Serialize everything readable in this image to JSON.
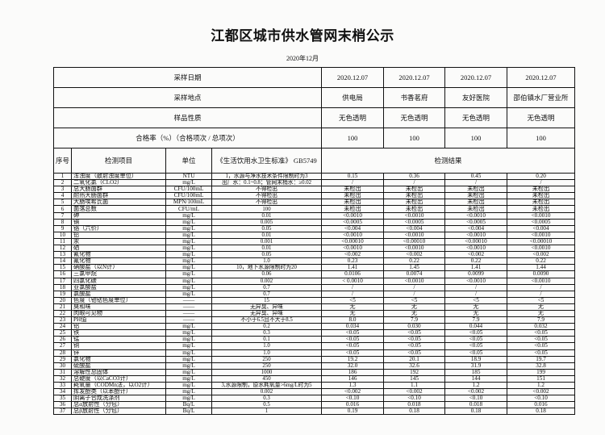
{
  "title": "江都区城市供水管网末梢公示",
  "subtitle": "2020年12月",
  "header_rows": [
    {
      "label": "采样日期",
      "values": [
        "2020.12.07",
        "2020.12.07",
        "2020.12.07",
        "2020.12.07"
      ]
    },
    {
      "label": "采样地点",
      "values": [
        "供电局",
        "书香茗府",
        "友好医院",
        "邵伯镇水厂营业所"
      ]
    },
    {
      "label": "样品性质",
      "values": [
        "无色透明",
        "无色透明",
        "无色透明",
        "无色透明"
      ]
    },
    {
      "label": "合格率（%）（合格项次 / 总项次）",
      "values": [
        "100",
        "100",
        "100",
        "100"
      ]
    }
  ],
  "columns": {
    "seq": "序号",
    "item": "检测项目",
    "unit": "单位",
    "standard": "《生活饮用水卫生标准》 GB5749",
    "results": "检测结果"
  },
  "rows": [
    {
      "seq": "1",
      "item": "浑浊度（散射浊度单位）",
      "unit": "NTU",
      "standard": "1，水源与净水技术条件限制时为3",
      "results": [
        "0.15",
        "0.36",
        "0.45",
        "0.20"
      ]
    },
    {
      "seq": "2",
      "item": "二氧化氯（CLO2）",
      "unit": "mg/L",
      "standard": "出厂水：0.1~0.8；管网末梢水：≥0.02",
      "results": [
        "/",
        "/",
        "/",
        "/"
      ]
    },
    {
      "seq": "3",
      "item": "总大肠菌群",
      "unit": "CFU/100mL",
      "standard": "不得检出",
      "results": [
        "未检出",
        "未检出",
        "未检出",
        "未检出"
      ]
    },
    {
      "seq": "4",
      "item": "耐热大肠菌群",
      "unit": "CFU/100mL",
      "standard": "不得检出",
      "results": [
        "未检出",
        "未检出",
        "未检出",
        "未检出"
      ]
    },
    {
      "seq": "5",
      "item": "大肠埃希氏菌",
      "unit": "MPN/100mL",
      "standard": "不得检出",
      "results": [
        "未检出",
        "未检出",
        "未检出",
        "未检出"
      ]
    },
    {
      "seq": "6",
      "item": "菌落总数",
      "unit": "CFU/mL",
      "standard": "100",
      "results": [
        "未检出",
        "未检出",
        "未检出",
        "未检出"
      ]
    },
    {
      "seq": "7",
      "item": "砷",
      "unit": "mg/L",
      "standard": "0.01",
      "results": [
        "<0.0010",
        "<0.0010",
        "<0.0010",
        "<0.0010"
      ]
    },
    {
      "seq": "8",
      "item": "镉",
      "unit": "mg/L",
      "standard": "0.005",
      "results": [
        "<0.0005",
        "<0.0005",
        "<0.0005",
        "<0.0005"
      ]
    },
    {
      "seq": "9",
      "item": "铬（六价）",
      "unit": "mg/L",
      "standard": "0.05",
      "results": [
        "<0.004",
        "<0.004",
        "<0.004",
        "<0.004"
      ]
    },
    {
      "seq": "10",
      "item": "铅",
      "unit": "mg/L",
      "standard": "0.01",
      "results": [
        "<0.0010",
        "<0.0010",
        "<0.0010",
        "<0.0010"
      ]
    },
    {
      "seq": "11",
      "item": "汞",
      "unit": "mg/L",
      "standard": "0.001",
      "results": [
        "<0.00010",
        "<0.00010",
        "<0.00010",
        "<0.00010"
      ]
    },
    {
      "seq": "12",
      "item": "硒",
      "unit": "mg/L",
      "standard": "0.01",
      "results": [
        "<0.0010",
        "<0.0010",
        "<0.0010",
        "<0.0010"
      ]
    },
    {
      "seq": "13",
      "item": "氰化物",
      "unit": "mg/L",
      "standard": "0.05",
      "results": [
        "<0.002",
        "<0.002",
        "<0.002",
        "<0.002"
      ]
    },
    {
      "seq": "14",
      "item": "氟化物",
      "unit": "mg/L",
      "standard": "1.0",
      "results": [
        "0.23",
        "0.22",
        "0.22",
        "0.22"
      ]
    },
    {
      "seq": "15",
      "item": "硝酸盐（以N计）",
      "unit": "mg/L",
      "standard": "10，地下水源限制时为20",
      "results": [
        "1.41",
        "1.45",
        "1.41",
        "1.44"
      ]
    },
    {
      "seq": "16",
      "item": "三氯甲烷",
      "unit": "mg/L",
      "standard": "0.06",
      "results": [
        "0.0106",
        "0.0074",
        "0.0099",
        "0.0090"
      ]
    },
    {
      "seq": "17",
      "item": "四氯化碳",
      "unit": "mg/L",
      "standard": "0.002",
      "results": [
        "< 0.0010",
        "<0.0010",
        "<0.0010",
        "<0.0010"
      ]
    },
    {
      "seq": "18",
      "item": "亚氯酸盐",
      "unit": "mg/L",
      "standard": "0.7",
      "results": [
        "/",
        "/",
        "/",
        "/"
      ]
    },
    {
      "seq": "19",
      "item": "氯酸盐",
      "unit": "mg/L",
      "standard": "0.7",
      "results": [
        "/",
        "/",
        "/",
        "/"
      ]
    },
    {
      "seq": "20",
      "item": "色度（铂钴色度单位）",
      "unit": "——",
      "standard": "15",
      "results": [
        "<5",
        "<5",
        "<5",
        "<5"
      ]
    },
    {
      "seq": "21",
      "item": "臭和味",
      "unit": "——",
      "standard": "无异臭、异味",
      "results": [
        "无",
        "无",
        "无",
        "无"
      ]
    },
    {
      "seq": "22",
      "item": "肉眼可见物",
      "unit": "——",
      "standard": "无异臭、异味",
      "results": [
        "无",
        "无",
        "无",
        "无"
      ]
    },
    {
      "seq": "23",
      "item": "PH值",
      "unit": "——",
      "standard": "不小于6.5且不大于8.5",
      "results": [
        "8.0",
        "7.9",
        "7.9",
        "7.9"
      ]
    },
    {
      "seq": "24",
      "item": "铝",
      "unit": "mg/L",
      "standard": "0.2",
      "results": [
        "0.034",
        "0.030",
        "0.044",
        "0.032"
      ]
    },
    {
      "seq": "25",
      "item": "铁",
      "unit": "mg/L",
      "standard": "0.3",
      "results": [
        "<0.05",
        "<0.05",
        "<0.05",
        "<0.05"
      ]
    },
    {
      "seq": "26",
      "item": "锰",
      "unit": "mg/L",
      "standard": "0.1",
      "results": [
        "<0.05",
        "<0.05",
        "<0.05",
        "<0.05"
      ]
    },
    {
      "seq": "27",
      "item": "铜",
      "unit": "mg/L",
      "standard": "1.0",
      "results": [
        "<0.05",
        "<0.05",
        "<0.05",
        "<0.05"
      ]
    },
    {
      "seq": "28",
      "item": "锌",
      "unit": "mg/L",
      "standard": "1.0",
      "results": [
        "<0.05",
        "<0.05",
        "<0.05",
        "<0.05"
      ]
    },
    {
      "seq": "29",
      "item": "氯化物",
      "unit": "mg/L",
      "standard": "250",
      "results": [
        "19.2",
        "20.1",
        "18.9",
        "19.7"
      ]
    },
    {
      "seq": "30",
      "item": "硫酸盐",
      "unit": "mg/L",
      "standard": "250",
      "results": [
        "32.0",
        "32.6",
        "31.9",
        "32.8"
      ]
    },
    {
      "seq": "31",
      "item": "溶解性总固体",
      "unit": "mg/L",
      "standard": "1000",
      "results": [
        "186",
        "192",
        "185",
        "199"
      ]
    },
    {
      "seq": "32",
      "item": "总硬度（以CaCO3计）",
      "unit": "mg/L",
      "standard": "450",
      "results": [
        "146",
        "145",
        "144",
        "151"
      ]
    },
    {
      "seq": "33",
      "item": "耗氧量（CODMn法，以O2计）",
      "unit": "mg/L",
      "standard": "3,水源限制，原水耗氧量>6mg/L时为5",
      "results": [
        "1.3",
        "1.1",
        "1.2",
        "1.2"
      ]
    },
    {
      "seq": "34",
      "item": "挥发酚类（以苯酚计）",
      "unit": "mg/L",
      "standard": "0.002",
      "results": [
        "<0.002",
        "<0.002",
        "<0.002",
        "<0.002"
      ]
    },
    {
      "seq": "35",
      "item": "阴离子合成洗涤剂",
      "unit": "mg/L",
      "standard": "0.3",
      "results": [
        "<0.10",
        "<0.10",
        "<0.10",
        "<0.10"
      ]
    },
    {
      "seq": "36",
      "item": "总α放射性（分包）",
      "unit": "Bq/L",
      "standard": "0.5",
      "results": [
        "0.016",
        "0.018",
        "0.018",
        "0.016"
      ]
    },
    {
      "seq": "37",
      "item": "总β放射性（分包）",
      "unit": "Bq/L",
      "standard": "1",
      "results": [
        "0.19",
        "0.18",
        "0.18",
        "0.18"
      ]
    }
  ]
}
